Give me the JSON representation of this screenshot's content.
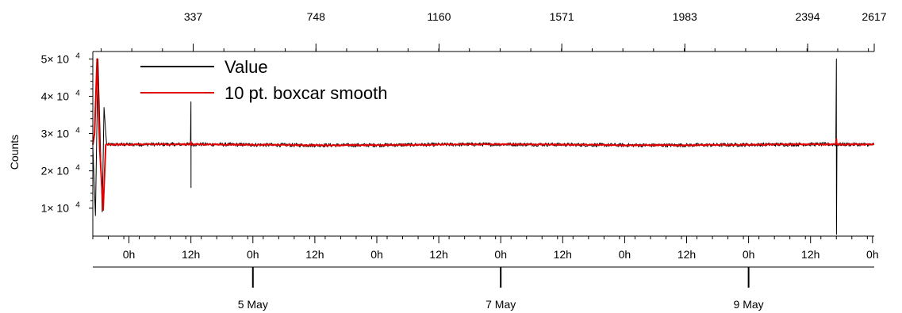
{
  "chart_data": {
    "type": "line",
    "ylabel": "Counts",
    "y_ticks": [
      {
        "value": 10000,
        "label": "1× 10",
        "exp": "4"
      },
      {
        "value": 20000,
        "label": "2× 10",
        "exp": "4"
      },
      {
        "value": 30000,
        "label": "3× 10",
        "exp": "4"
      },
      {
        "value": 40000,
        "label": "4× 10",
        "exp": "4"
      },
      {
        "value": 50000,
        "label": "5× 10",
        "exp": "4"
      }
    ],
    "ylim": [
      2500,
      52000
    ],
    "top_axis": {
      "ticks": [
        337,
        748,
        1160,
        1571,
        1983,
        2394,
        2617
      ],
      "range": [
        1,
        2617
      ]
    },
    "time_axis": {
      "start": "2020-05-03T17:00",
      "end": "2020-05-10T00:20",
      "hour_ticks": [
        {
          "t": "2020-05-04T00:00",
          "label": "0h"
        },
        {
          "t": "2020-05-04T12:00",
          "label": "12h"
        },
        {
          "t": "2020-05-05T00:00",
          "label": "0h"
        },
        {
          "t": "2020-05-05T12:00",
          "label": "12h"
        },
        {
          "t": "2020-05-06T00:00",
          "label": "0h"
        },
        {
          "t": "2020-05-06T12:00",
          "label": "12h"
        },
        {
          "t": "2020-05-07T00:00",
          "label": "0h"
        },
        {
          "t": "2020-05-07T12:00",
          "label": "12h"
        },
        {
          "t": "2020-05-08T00:00",
          "label": "0h"
        },
        {
          "t": "2020-05-08T12:00",
          "label": "12h"
        },
        {
          "t": "2020-05-09T00:00",
          "label": "0h"
        },
        {
          "t": "2020-05-09T12:00",
          "label": "12h"
        },
        {
          "t": "2020-05-10T00:00",
          "label": "0h"
        }
      ],
      "date_ticks": [
        {
          "t": "2020-05-05T00:00",
          "label": "5 May"
        },
        {
          "t": "2020-05-07T00:00",
          "label": "7 May"
        },
        {
          "t": "2020-05-09T00:00",
          "label": "9 May"
        }
      ]
    },
    "legend_position": "top-left",
    "series": [
      {
        "name": "Value",
        "color": "#000000",
        "baseline": 27000,
        "noise": 500,
        "points": [
          {
            "t": "2020-05-03T17:00",
            "y": 26500
          },
          {
            "t": "2020-05-03T17:30",
            "y": 8000
          },
          {
            "t": "2020-05-03T18:00",
            "y": 50000
          },
          {
            "t": "2020-05-03T18:50",
            "y": 9000
          },
          {
            "t": "2020-05-03T19:10",
            "y": 37000
          },
          {
            "t": "2020-05-03T19:40",
            "y": 27000
          },
          {
            "t": "2020-05-04T12:00",
            "y": 38500
          },
          {
            "t": "2020-05-04T12:01",
            "y": 15500
          },
          {
            "t": "2020-05-09T17:00",
            "y": 50000
          },
          {
            "t": "2020-05-09T17:01",
            "y": 3000
          },
          {
            "t": "2020-05-10T00:20",
            "y": 27000
          }
        ]
      },
      {
        "name": "10 pt. boxcar smooth",
        "color": "#e00000",
        "baseline": 27000,
        "noise": 150,
        "points": [
          {
            "t": "2020-05-03T17:00",
            "y": 27000
          },
          {
            "t": "2020-05-03T17:20",
            "y": 30000
          },
          {
            "t": "2020-05-03T17:50",
            "y": 50000
          },
          {
            "t": "2020-05-03T18:20",
            "y": 26000
          },
          {
            "t": "2020-05-03T19:00",
            "y": 9500
          },
          {
            "t": "2020-05-03T19:30",
            "y": 27000
          },
          {
            "t": "2020-05-04T12:00",
            "y": 27800
          },
          {
            "t": "2020-05-09T17:00",
            "y": 28500
          },
          {
            "t": "2020-05-10T00:20",
            "y": 27000
          }
        ]
      }
    ]
  }
}
